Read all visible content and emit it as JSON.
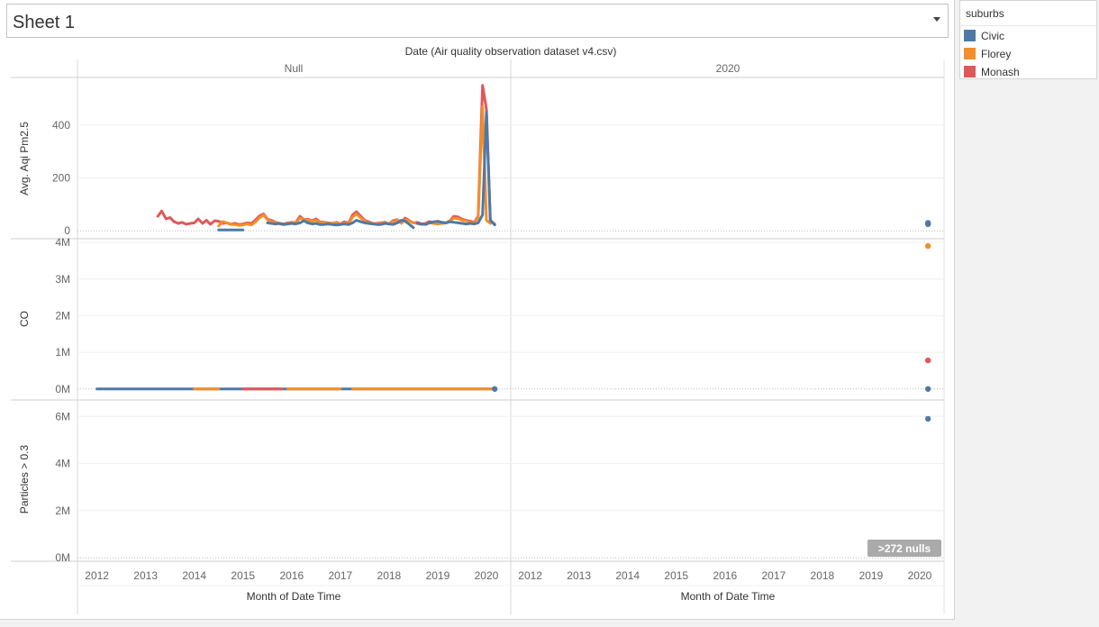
{
  "sheet": {
    "title": "Sheet 1"
  },
  "legend": {
    "title": "suburbs",
    "items": [
      {
        "label": "Civic",
        "color": "#4e79a7"
      },
      {
        "label": "Florey",
        "color": "#f28e2b"
      },
      {
        "label": "Monash",
        "color": "#e15759"
      }
    ]
  },
  "badge": {
    "text": ">272 nulls"
  },
  "chart_data": {
    "type": "line",
    "title": "Date (Air quality observation dataset v4.csv)",
    "column_headers": [
      "Null",
      "2020"
    ],
    "x_label": "Month of Date Time",
    "x_ticks": [
      "2012",
      "2013",
      "2014",
      "2015",
      "2016",
      "2017",
      "2018",
      "2019",
      "2020"
    ],
    "x_range": [
      2011.6,
      2020.5
    ],
    "grid": true,
    "legend_position": "right",
    "rows": [
      {
        "ylabel": "Avg. Aqi Pm2.5",
        "y_ticks": [
          0,
          200,
          400
        ],
        "tick_labels": [
          "0",
          "200",
          "400"
        ],
        "ylim": [
          -30,
          580
        ],
        "series": [
          {
            "name": "Monash",
            "color": "#e15759",
            "x": [
              2013.25,
              2013.33,
              2013.42,
              2013.5,
              2013.58,
              2013.67,
              2013.75,
              2013.83,
              2013.92,
              2014.0,
              2014.08,
              2014.17,
              2014.25,
              2014.33,
              2014.42,
              2014.5,
              2014.58,
              2014.67,
              2014.75,
              2014.83,
              2014.92,
              2015.0,
              2015.08,
              2015.17,
              2015.25,
              2015.33,
              2015.42,
              2015.5,
              2015.58,
              2015.67,
              2015.75,
              2015.83,
              2015.92,
              2016.0,
              2016.08,
              2016.17,
              2016.25,
              2016.33,
              2016.42,
              2016.5,
              2016.58,
              2016.67,
              2016.75,
              2016.83,
              2016.92,
              2017.0,
              2017.08,
              2017.17,
              2017.25,
              2017.33,
              2017.42,
              2017.5,
              2017.58,
              2017.67,
              2017.75,
              2017.83,
              2017.92,
              2018.0,
              2018.08,
              2018.17,
              2018.25,
              2018.33,
              2018.42,
              2018.5,
              2018.58,
              2018.67,
              2018.75,
              2018.83,
              2018.92,
              2019.0,
              2019.08,
              2019.17,
              2019.25,
              2019.33,
              2019.42,
              2019.5,
              2019.58,
              2019.67,
              2019.75,
              2019.83,
              2019.92,
              2020.0,
              2020.08,
              2020.17
            ],
            "y": [
              55,
              75,
              45,
              50,
              35,
              28,
              32,
              25,
              28,
              30,
              45,
              28,
              40,
              25,
              38,
              36,
              28,
              30,
              25,
              28,
              24,
              26,
              30,
              28,
              40,
              55,
              64,
              44,
              40,
              32,
              28,
              26,
              30,
              32,
              30,
              55,
              42,
              44,
              38,
              45,
              34,
              32,
              30,
              28,
              32,
              26,
              34,
              30,
              60,
              72,
              55,
              40,
              34,
              28,
              28,
              30,
              32,
              26,
              38,
              42,
              30,
              48,
              38,
              30,
              32,
              26,
              28,
              35,
              30,
              28,
              28,
              30,
              38,
              55,
              52,
              44,
              40,
              36,
              32,
              55,
              550,
              460,
              40,
              25
            ]
          },
          {
            "name": "Florey",
            "color": "#f28e2b",
            "x": [
              2014.5,
              2014.58,
              2014.67,
              2014.75,
              2014.83,
              2014.92,
              2015.0,
              2015.08,
              2015.17,
              2015.25,
              2015.33,
              2015.42,
              2015.5,
              2015.58,
              2015.67,
              2015.75,
              2015.83,
              2015.92,
              2016.0,
              2016.08,
              2016.17,
              2016.25,
              2016.33,
              2016.42,
              2016.5,
              2016.58,
              2016.67,
              2016.75,
              2016.83,
              2016.92,
              2017.0,
              2017.08,
              2017.17,
              2017.25,
              2017.33,
              2017.42,
              2017.5,
              2017.58,
              2017.67,
              2017.75,
              2017.83,
              2017.92,
              2018.0,
              2018.08,
              2018.17,
              2018.25,
              2018.33,
              2018.42,
              2018.5,
              2018.58,
              2018.67,
              2018.75,
              2018.83,
              2018.92,
              2019.0,
              2019.08,
              2019.17,
              2019.25,
              2019.33,
              2019.42,
              2019.5,
              2019.58,
              2019.67,
              2019.75,
              2019.83,
              2019.92,
              2020.0,
              2020.08
            ],
            "y": [
              18,
              35,
              30,
              24,
              24,
              20,
              22,
              26,
              22,
              32,
              48,
              60,
              42,
              36,
              30,
              26,
              24,
              28,
              30,
              28,
              48,
              42,
              40,
              36,
              40,
              32,
              30,
              28,
              28,
              30,
              26,
              30,
              28,
              52,
              64,
              48,
              36,
              30,
              28,
              26,
              28,
              30,
              26,
              34,
              40,
              28,
              42,
              36,
              30,
              28,
              24,
              26,
              30,
              28,
              26,
              28,
              30,
              36,
              48,
              46,
              40,
              38,
              32,
              30,
              50,
              470,
              40,
              28
            ]
          },
          {
            "name": "Civic",
            "color": "#4e79a7",
            "segments": [
              {
                "x": [
                  2014.5,
                  2015.0
                ],
                "y": [
                  3,
                  3
                ]
              },
              {
                "x": [
                  2015.5,
                  2015.58,
                  2015.67,
                  2015.75,
                  2015.83,
                  2015.92,
                  2016.0,
                  2016.08,
                  2016.17,
                  2016.25,
                  2016.33,
                  2016.42,
                  2016.5,
                  2016.58,
                  2016.67,
                  2016.75,
                  2016.83,
                  2016.92,
                  2017.0,
                  2017.08,
                  2017.17,
                  2017.25,
                  2017.33,
                  2017.42,
                  2017.5,
                  2017.58,
                  2017.67,
                  2017.75,
                  2017.83,
                  2017.92,
                  2018.0,
                  2018.08,
                  2018.17,
                  2018.25,
                  2018.33,
                  2018.42,
                  2018.5
                ],
                "y": [
                  30,
                  28,
                  26,
                  28,
                  24,
                  26,
                  28,
                  26,
                  30,
                  38,
                  30,
                  26,
                  28,
                  24,
                  24,
                  26,
                  24,
                  22,
                  24,
                  26,
                  24,
                  30,
                  40,
                  34,
                  30,
                  28,
                  26,
                  24,
                  24,
                  28,
                  26,
                  24,
                  30,
                  40,
                  36,
                  24,
                  12
                ]
              },
              {
                "x": [
                  2018.58,
                  2018.67,
                  2018.75,
                  2018.83,
                  2018.92,
                  2019.0,
                  2019.08,
                  2019.17,
                  2019.25,
                  2019.33,
                  2019.42,
                  2019.5,
                  2019.58,
                  2019.67,
                  2019.75,
                  2019.83,
                  2019.92,
                  2020.0,
                  2020.08,
                  2020.17
                ],
                "y": [
                  28,
                  26,
                  24,
                  30,
                  34,
                  36,
                  32,
                  30,
                  34,
                  32,
                  30,
                  28,
                  26,
                  28,
                  26,
                  30,
                  60,
                  450,
                  40,
                  22
                ]
              }
            ]
          }
        ],
        "points_2020": [
          {
            "series": "Civic",
            "value": 25
          },
          {
            "series": "Civic",
            "value": 30
          }
        ]
      },
      {
        "ylabel": "CO",
        "y_ticks": [
          0,
          1000000,
          2000000,
          3000000,
          4000000
        ],
        "tick_labels": [
          "0M",
          "1M",
          "2M",
          "3M",
          "4M"
        ],
        "ylim": [
          -300000,
          4100000
        ],
        "series": [
          {
            "name": "Civic",
            "color": "#4e79a7",
            "segments": [
              {
                "x": [
                  2012.0,
                  2020.17
                ],
                "y": [
                  0,
                  0
                ]
              }
            ]
          },
          {
            "name": "Florey",
            "color": "#f28e2b",
            "segments": [
              {
                "x": [
                  2014.0,
                  2014.5
                ],
                "y": [
                  0,
                  0
                ]
              },
              {
                "x": [
                  2015.92,
                  2017.0
                ],
                "y": [
                  0,
                  0
                ]
              },
              {
                "x": [
                  2017.25,
                  2020.17
                ],
                "y": [
                  0,
                  0
                ]
              }
            ]
          },
          {
            "name": "Monash",
            "color": "#e15759",
            "segments": [
              {
                "x": [
                  2015.0,
                  2015.8
                ],
                "y": [
                  0,
                  0
                ]
              }
            ]
          }
        ],
        "end_point": {
          "series": "Civic",
          "x": 2020.17,
          "value": 0
        },
        "points_2020": [
          {
            "series": "Florey",
            "value": 3900000
          },
          {
            "series": "Monash",
            "value": 780000
          },
          {
            "series": "Civic",
            "value": 0
          }
        ]
      },
      {
        "ylabel": "Particles > 0.3",
        "y_ticks": [
          0,
          2000000,
          4000000,
          6000000
        ],
        "tick_labels": [
          "0M",
          "2M",
          "4M",
          "6M"
        ],
        "ylim": [
          -150000,
          6700000
        ],
        "series": [],
        "points_2020": [
          {
            "series": "Civic",
            "value": 5900000
          }
        ]
      }
    ]
  }
}
